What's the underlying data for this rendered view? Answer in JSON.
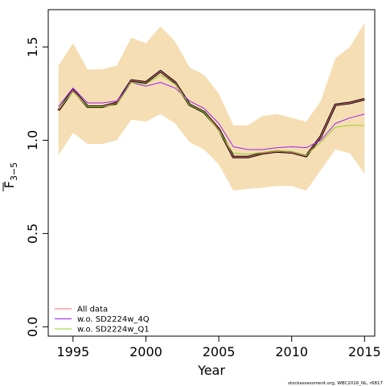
{
  "chart_data": {
    "type": "line",
    "xlabel": "Year",
    "ylabel": "F",
    "ylabel_sub": "3−5",
    "xlim": [
      1993.3,
      2015.7
    ],
    "ylim": [
      -0.05,
      1.7
    ],
    "x_ticks": [
      1995,
      2000,
      2005,
      2010,
      2015
    ],
    "y_ticks": [
      0.0,
      0.5,
      1.0,
      1.5
    ],
    "y_tick_labels": [
      "0.0",
      "0.5",
      "1.0",
      "1.5"
    ],
    "grid": false,
    "legend_position": "bottom-left",
    "x": [
      1994,
      1995,
      1996,
      1997,
      1998,
      1999,
      2000,
      2001,
      2002,
      2003,
      2004,
      2005,
      2006,
      2007,
      2008,
      2009,
      2010,
      2011,
      2012,
      2013,
      2014,
      2015
    ],
    "band": {
      "color": "#F5DEB3",
      "upper": [
        1.4,
        1.52,
        1.38,
        1.38,
        1.4,
        1.55,
        1.52,
        1.61,
        1.53,
        1.39,
        1.35,
        1.25,
        1.08,
        1.08,
        1.13,
        1.14,
        1.12,
        1.1,
        1.21,
        1.44,
        1.5,
        1.63
      ],
      "lower": [
        0.92,
        1.04,
        0.98,
        0.98,
        1.0,
        1.11,
        1.1,
        1.14,
        1.09,
        0.99,
        0.95,
        0.87,
        0.73,
        0.74,
        0.745,
        0.755,
        0.755,
        0.73,
        0.84,
        0.95,
        0.93,
        0.82
      ]
    },
    "series": [
      {
        "name": "All data",
        "color": "#F26D7D",
        "values": [
          1.16,
          1.27,
          1.18,
          1.18,
          1.2,
          1.32,
          1.31,
          1.37,
          1.31,
          1.19,
          1.15,
          1.06,
          0.91,
          0.91,
          0.93,
          0.94,
          0.935,
          0.915,
          1.02,
          1.19,
          1.2,
          1.22
        ]
      },
      {
        "name": "w.o. SD2224w_4Q",
        "color": "#A020F0",
        "values": [
          1.18,
          1.28,
          1.2,
          1.2,
          1.21,
          1.31,
          1.29,
          1.31,
          1.28,
          1.21,
          1.17,
          1.09,
          0.965,
          0.95,
          0.95,
          0.96,
          0.965,
          0.96,
          1.0,
          1.09,
          1.12,
          1.14
        ]
      },
      {
        "name": "w.o. SD2224w_Q1",
        "color": "#9ACD32",
        "values": [
          1.17,
          1.26,
          1.18,
          1.18,
          1.19,
          1.31,
          1.3,
          1.35,
          1.3,
          1.19,
          1.15,
          1.05,
          0.93,
          0.925,
          0.935,
          0.945,
          0.94,
          0.92,
          0.99,
          1.07,
          1.08,
          1.08
        ]
      }
    ],
    "estimate_line": {
      "color": "#000000",
      "values": [
        1.16,
        1.27,
        1.18,
        1.18,
        1.2,
        1.32,
        1.31,
        1.37,
        1.31,
        1.19,
        1.15,
        1.06,
        0.91,
        0.91,
        0.93,
        0.94,
        0.935,
        0.915,
        1.02,
        1.19,
        1.2,
        1.22
      ]
    }
  },
  "footer_note": "stockassessment.org,  WBC2016_NL, r6817"
}
